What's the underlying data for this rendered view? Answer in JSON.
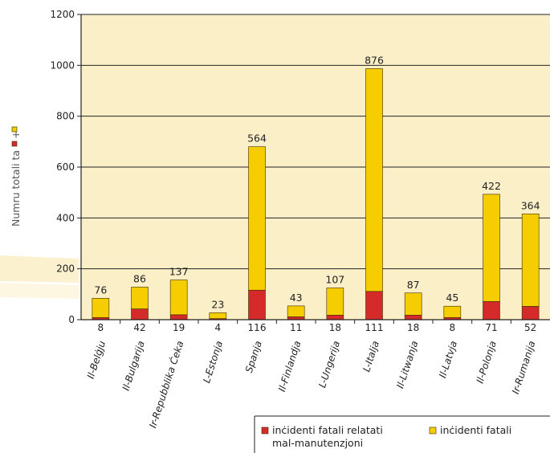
{
  "chart_data": {
    "type": "bar",
    "stacked": true,
    "categories": [
      "Il-Belġju",
      "Il-Bulgarija",
      "Ir-Repubblika Ċeka",
      "L-Estonja",
      "Spanja",
      "Il-Finlandja",
      "L-Ungerija",
      "L-Italja",
      "Il-Litwanja",
      "Il-Latvja",
      "Il-Polonja",
      "Ir-Rumanija"
    ],
    "series": [
      {
        "name": "inċidenti fatali relatati mal-manutenzjoni",
        "name_lines": [
          "inċidenti fatali relatati",
          "mal-manutenzjoni"
        ],
        "color": "#d42a2a",
        "values": [
          8,
          42,
          19,
          4,
          116,
          11,
          18,
          111,
          18,
          8,
          71,
          52
        ]
      },
      {
        "name": "inċidenti fatali",
        "color": "#f5cd00",
        "values": [
          76,
          86,
          137,
          23,
          564,
          43,
          107,
          876,
          87,
          45,
          422,
          364
        ]
      }
    ],
    "ylabel_text": "Numru totali ta",
    "ylabel_plus": "+",
    "ylim": [
      0,
      1200
    ],
    "yticks": [
      0,
      200,
      400,
      600,
      800,
      1000,
      1200
    ],
    "grid": "horizontal",
    "legend_position": "bottom-right",
    "plot_background": "#fbefc7"
  }
}
